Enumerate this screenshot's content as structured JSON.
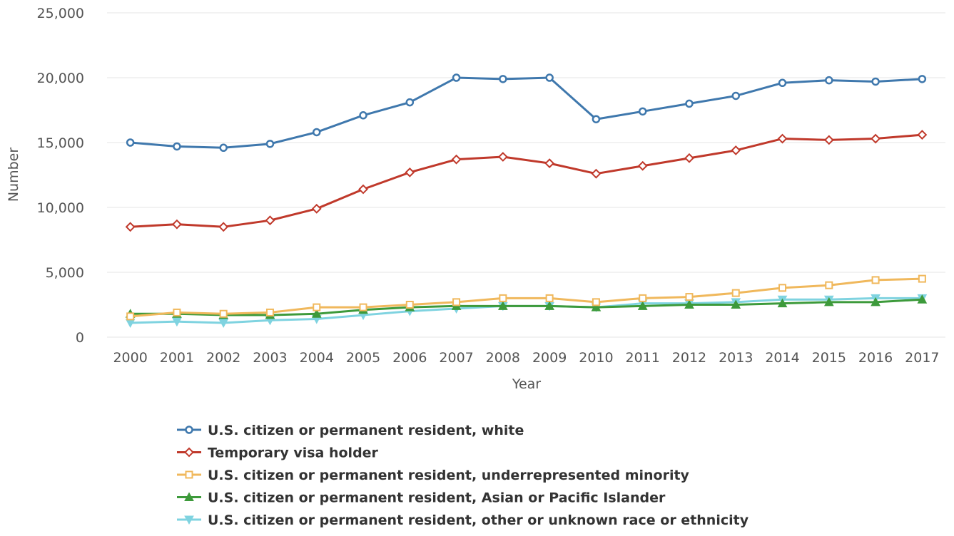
{
  "chart_data": {
    "type": "line",
    "xlabel": "Year",
    "ylabel": "Number",
    "ylim": [
      0,
      25000
    ],
    "yticks": [
      0,
      5000,
      10000,
      15000,
      20000,
      25000
    ],
    "ytick_labels": [
      "0",
      "5,000",
      "10,000",
      "15,000",
      "20,000",
      "25,000"
    ],
    "categories": [
      "2000",
      "2001",
      "2002",
      "2003",
      "2004",
      "2005",
      "2006",
      "2007",
      "2008",
      "2009",
      "2010",
      "2011",
      "2012",
      "2013",
      "2014",
      "2015",
      "2016",
      "2017"
    ],
    "grid": true,
    "legend_position": "bottom",
    "series": [
      {
        "name": "U.S. citizen or permanent resident, white",
        "color": "#3f78ad",
        "marker": "circle",
        "values": [
          15000,
          14700,
          14600,
          14900,
          15800,
          17100,
          18100,
          20000,
          19900,
          20000,
          16800,
          17400,
          18000,
          18600,
          19600,
          19800,
          19700,
          19900
        ]
      },
      {
        "name": "Temporary visa holder",
        "color": "#c0392b",
        "marker": "diamond",
        "values": [
          8500,
          8700,
          8500,
          9000,
          9900,
          11400,
          12700,
          13700,
          13900,
          13400,
          12600,
          13200,
          13800,
          14400,
          15300,
          15200,
          15300,
          15600
        ]
      },
      {
        "name": "U.S. citizen or permanent resident, underrepresented minority",
        "color": "#f0b85c",
        "marker": "square",
        "values": [
          1600,
          1900,
          1800,
          1900,
          2300,
          2300,
          2500,
          2700,
          3000,
          3000,
          2700,
          3000,
          3100,
          3400,
          3800,
          4000,
          4400,
          4500
        ]
      },
      {
        "name": "U.S. citizen or permanent resident, Asian or Pacific Islander",
        "color": "#3d9a3b",
        "marker": "triangle-up",
        "values": [
          1800,
          1800,
          1700,
          1700,
          1800,
          2100,
          2300,
          2400,
          2400,
          2400,
          2300,
          2400,
          2500,
          2500,
          2600,
          2700,
          2700,
          2900
        ]
      },
      {
        "name": "U.S. citizen or permanent resident, other or unknown race or ethnicity",
        "color": "#7fd3e0",
        "marker": "triangle-down",
        "values": [
          1100,
          1200,
          1100,
          1300,
          1400,
          1700,
          2000,
          2200,
          2400,
          2400,
          2300,
          2600,
          2600,
          2700,
          2900,
          2900,
          3000,
          3000
        ]
      }
    ]
  }
}
